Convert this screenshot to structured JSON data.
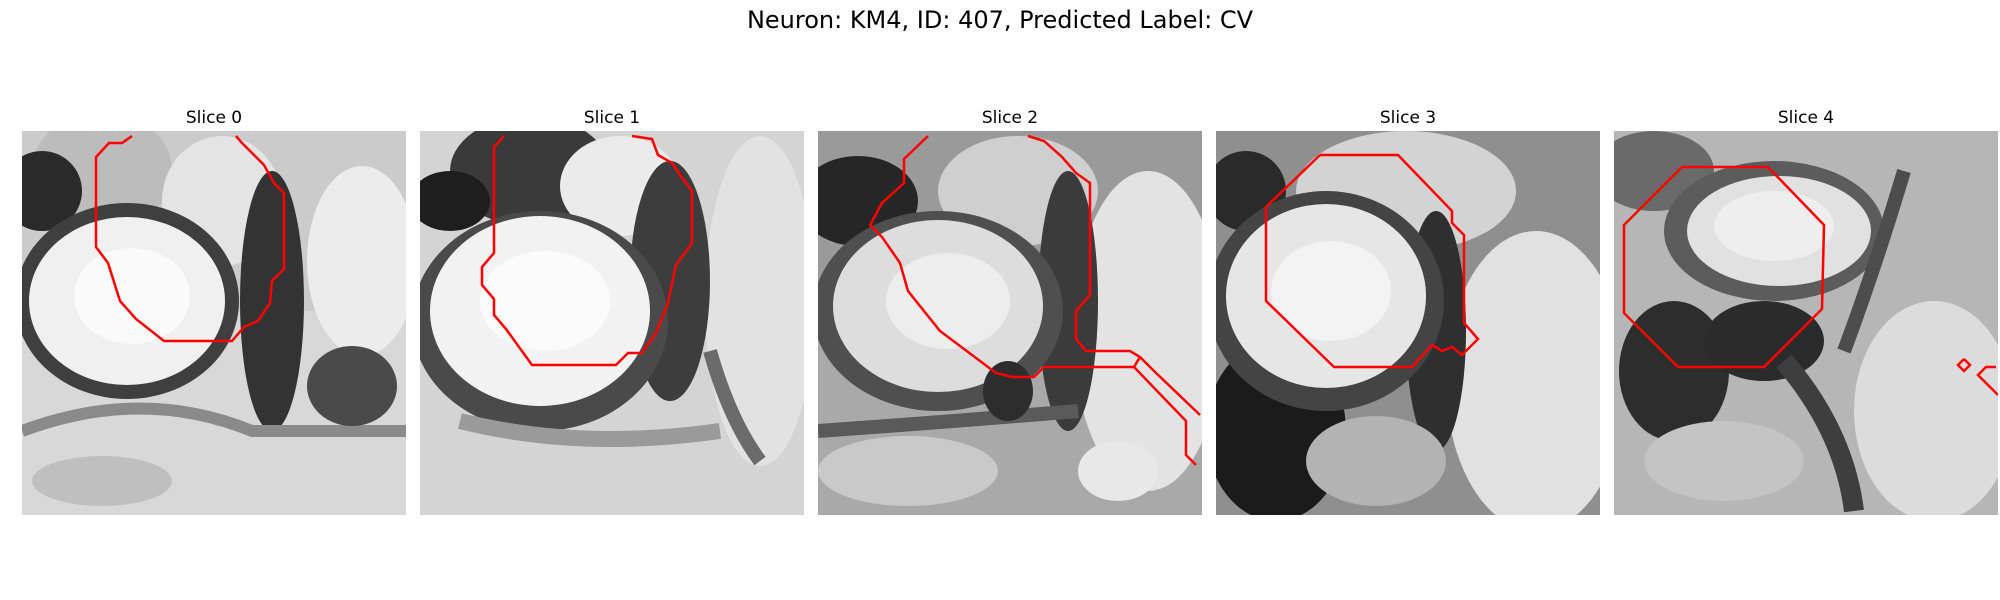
{
  "figure": {
    "title": "Neuron: KM4, ID: 407, Predicted Label: CV"
  },
  "panels": [
    {
      "title": "Slice 0"
    },
    {
      "title": "Slice 1"
    },
    {
      "title": "Slice 2"
    },
    {
      "title": "Slice 3"
    },
    {
      "title": "Slice 4"
    }
  ],
  "colors": {
    "contour": "#ff0000",
    "background": "#ffffff"
  }
}
